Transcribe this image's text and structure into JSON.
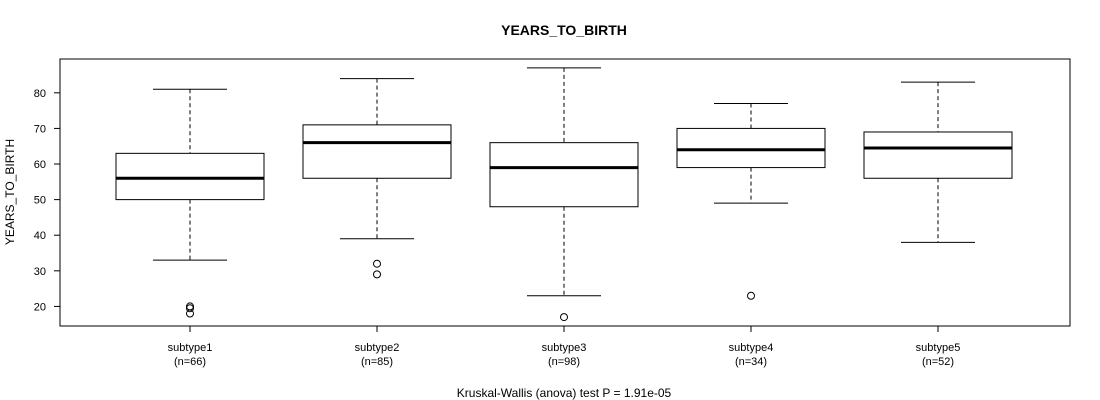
{
  "chart_data": {
    "type": "boxplot",
    "title": "YEARS_TO_BIRTH",
    "ylabel": "YEARS_TO_BIRTH",
    "xlabel": "Kruskal-Wallis (anova) test P = 1.91e-05",
    "ylim": [
      14.5,
      89.5
    ],
    "yticks": [
      20,
      30,
      40,
      50,
      60,
      70,
      80
    ],
    "grid": false,
    "categories": [
      {
        "name": "subtype1",
        "n_label": "(n=66)",
        "whisker_low": 33,
        "q1": 50,
        "median": 56,
        "q3": 63,
        "whisker_high": 81,
        "outliers": [
          20,
          19.5,
          18
        ]
      },
      {
        "name": "subtype2",
        "n_label": "(n=85)",
        "whisker_low": 39,
        "q1": 56,
        "median": 66,
        "q3": 71,
        "whisker_high": 84,
        "outliers": [
          32,
          29
        ]
      },
      {
        "name": "subtype3",
        "n_label": "(n=98)",
        "whisker_low": 23,
        "q1": 48,
        "median": 59,
        "q3": 66,
        "whisker_high": 87,
        "outliers": [
          17
        ]
      },
      {
        "name": "subtype4",
        "n_label": "(n=34)",
        "whisker_low": 49,
        "q1": 59,
        "median": 64,
        "q3": 70,
        "whisker_high": 77,
        "outliers": [
          23
        ]
      },
      {
        "name": "subtype5",
        "n_label": "(n=52)",
        "whisker_low": 38,
        "q1": 56,
        "median": 64.5,
        "q3": 69,
        "whisker_high": 83,
        "outliers": []
      }
    ]
  }
}
